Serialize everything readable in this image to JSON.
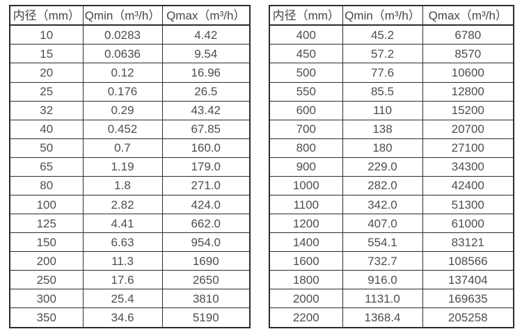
{
  "colors": {
    "border": "#2b2b2b",
    "text": "#4d4d4d",
    "background": "#ffffff"
  },
  "chart_data": [
    {
      "type": "table",
      "title": "",
      "columns": [
        "内径（mm）",
        "Qmin（m³/h）",
        "Qmax（m³/h）"
      ],
      "rows": [
        [
          "10",
          "0.0283",
          "4.42"
        ],
        [
          "15",
          "0.0636",
          "9.54"
        ],
        [
          "20",
          "0.12",
          "16.96"
        ],
        [
          "25",
          "0.176",
          "26.5"
        ],
        [
          "32",
          "0.29",
          "43.42"
        ],
        [
          "40",
          "0.452",
          "67.85"
        ],
        [
          "50",
          "0.7",
          "160.0"
        ],
        [
          "65",
          "1.19",
          "179.0"
        ],
        [
          "80",
          "1.8",
          "271.0"
        ],
        [
          "100",
          "2.82",
          "424.0"
        ],
        [
          "125",
          "4.41",
          "662.0"
        ],
        [
          "150",
          "6.63",
          "954.0"
        ],
        [
          "200",
          "11.3",
          "1690"
        ],
        [
          "250",
          "17.6",
          "2650"
        ],
        [
          "300",
          "25.4",
          "3810"
        ],
        [
          "350",
          "34.6",
          "5190"
        ]
      ]
    },
    {
      "type": "table",
      "title": "",
      "columns": [
        "内径（mm）",
        "Qmin（m³/h）",
        "Qmax（m³/h）"
      ],
      "rows": [
        [
          "400",
          "45.2",
          "6780"
        ],
        [
          "450",
          "57.2",
          "8570"
        ],
        [
          "500",
          "77.6",
          "10600"
        ],
        [
          "550",
          "85.5",
          "12800"
        ],
        [
          "600",
          "110",
          "15200"
        ],
        [
          "700",
          "138",
          "20700"
        ],
        [
          "800",
          "180",
          "27100"
        ],
        [
          "900",
          "229.0",
          "34300"
        ],
        [
          "1000",
          "282.0",
          "42400"
        ],
        [
          "1100",
          "342.0",
          "51300"
        ],
        [
          "1200",
          "407.0",
          "61000"
        ],
        [
          "1400",
          "554.1",
          "83121"
        ],
        [
          "1600",
          "732.7",
          "108566"
        ],
        [
          "1800",
          "916.0",
          "137404"
        ],
        [
          "2000",
          "1131.0",
          "169635"
        ],
        [
          "2200",
          "1368.4",
          "205258"
        ]
      ]
    }
  ]
}
